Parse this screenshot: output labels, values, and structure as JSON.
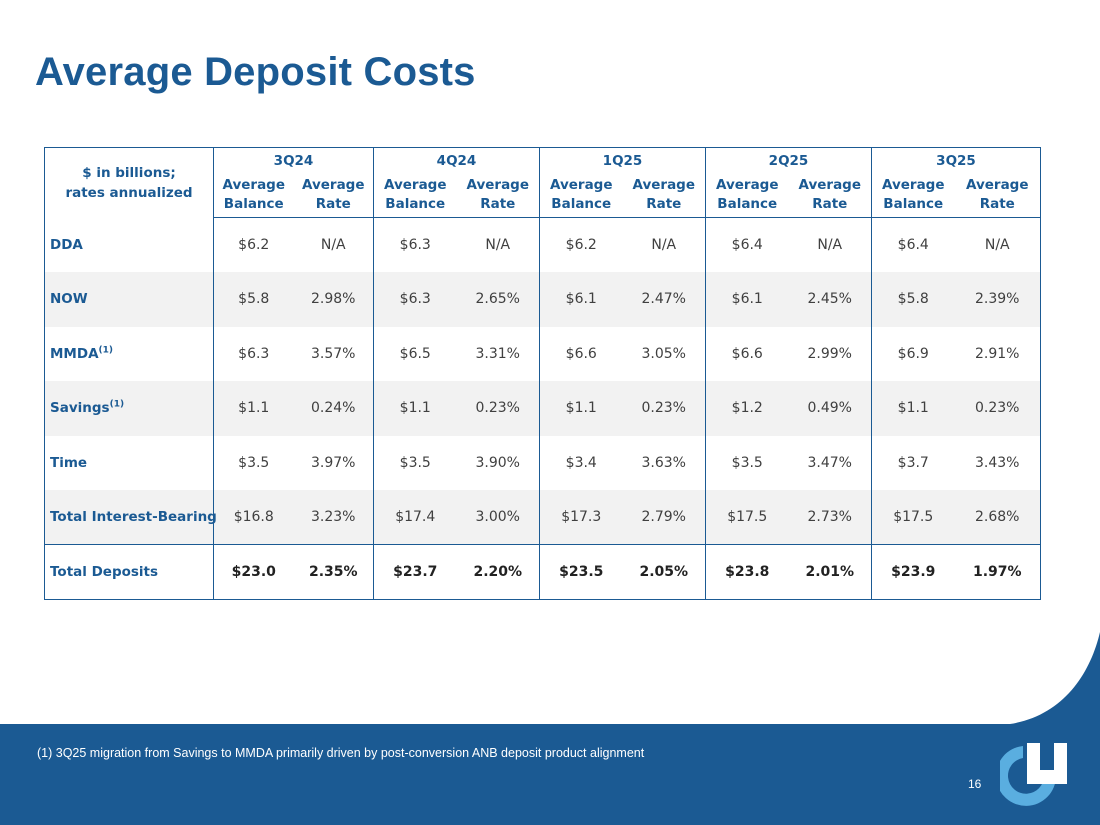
{
  "title": "Average Deposit Costs",
  "table": {
    "corner_label_line1": "$ in billions;",
    "corner_label_line2": "rates annualized",
    "periods": [
      "3Q24",
      "4Q24",
      "1Q25",
      "2Q25",
      "3Q25"
    ],
    "sub_headers": {
      "balance_line1": "Average",
      "balance_line2": "Balance",
      "rate_line1": "Average",
      "rate_line2": "Rate"
    },
    "rows": [
      {
        "label": "DDA",
        "footnote_marker": "",
        "values": [
          "$6.2",
          "N/A",
          "$6.3",
          "N/A",
          "$6.2",
          "N/A",
          "$6.4",
          "N/A",
          "$6.4",
          "N/A"
        ]
      },
      {
        "label": "NOW",
        "footnote_marker": "",
        "values": [
          "$5.8",
          "2.98%",
          "$6.3",
          "2.65%",
          "$6.1",
          "2.47%",
          "$6.1",
          "2.45%",
          "$5.8",
          "2.39%"
        ]
      },
      {
        "label": "MMDA",
        "footnote_marker": "(1)",
        "values": [
          "$6.3",
          "3.57%",
          "$6.5",
          "3.31%",
          "$6.6",
          "3.05%",
          "$6.6",
          "2.99%",
          "$6.9",
          "2.91%"
        ]
      },
      {
        "label": "Savings",
        "footnote_marker": "(1)",
        "values": [
          "$1.1",
          "0.24%",
          "$1.1",
          "0.23%",
          "$1.1",
          "0.23%",
          "$1.2",
          "0.49%",
          "$1.1",
          "0.23%"
        ]
      },
      {
        "label": "Time",
        "footnote_marker": "",
        "values": [
          "$3.5",
          "3.97%",
          "$3.5",
          "3.90%",
          "$3.4",
          "3.63%",
          "$3.5",
          "3.47%",
          "$3.7",
          "3.43%"
        ]
      },
      {
        "label": "Total Interest-Bearing",
        "footnote_marker": "",
        "values": [
          "$16.8",
          "3.23%",
          "$17.4",
          "3.00%",
          "$17.3",
          "2.79%",
          "$17.5",
          "2.73%",
          "$17.5",
          "2.68%"
        ]
      },
      {
        "label": "Total Deposits",
        "footnote_marker": "",
        "values": [
          "$23.0",
          "2.35%",
          "$23.7",
          "2.20%",
          "$23.5",
          "2.05%",
          "$23.8",
          "2.01%",
          "$23.9",
          "1.97%"
        ]
      }
    ]
  },
  "footnote": "(1) 3Q25 migration from Savings to MMDA primarily driven by post-conversion ANB deposit product alignment",
  "page_number": "16",
  "colors": {
    "brand_blue": "#1b5a93",
    "light_blue": "#5aaee0",
    "row_shade": "#f2f2f2"
  }
}
